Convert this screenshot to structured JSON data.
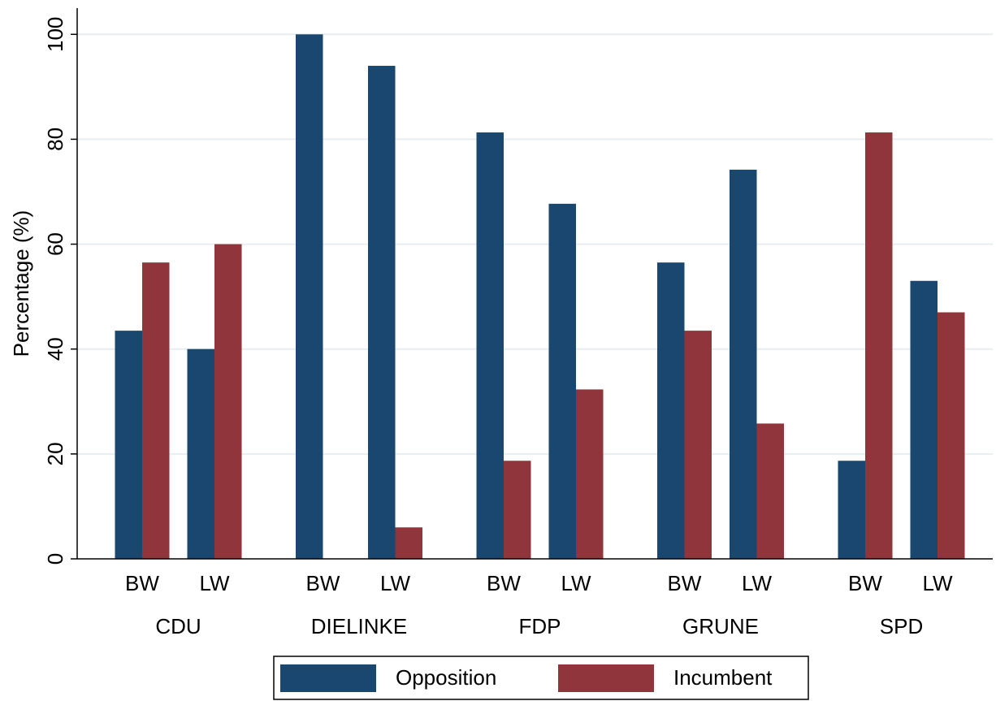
{
  "chart_data": {
    "type": "bar",
    "y_label": "Percentage (%)",
    "groups": [
      "CDU",
      "DIELINKE",
      "FDP",
      "GRUNE",
      "SPD"
    ],
    "categories": [
      "BW",
      "LW",
      "BW",
      "LW",
      "BW",
      "LW",
      "BW",
      "LW",
      "BW",
      "LW"
    ],
    "series": [
      {
        "name": "Opposition",
        "color": "#1a476f",
        "values": [
          43.5,
          40,
          100,
          94,
          81.3,
          67.7,
          56.5,
          74.2,
          18.7,
          53
        ]
      },
      {
        "name": "Incumbent",
        "color": "#90353b",
        "values": [
          56.5,
          60,
          0,
          6,
          18.7,
          32.3,
          43.5,
          25.8,
          81.3,
          47
        ]
      }
    ],
    "ylim": [
      0,
      105
    ],
    "yticks": [
      0,
      20,
      40,
      60,
      80,
      100
    ],
    "grid": true,
    "legend": "bottom"
  }
}
